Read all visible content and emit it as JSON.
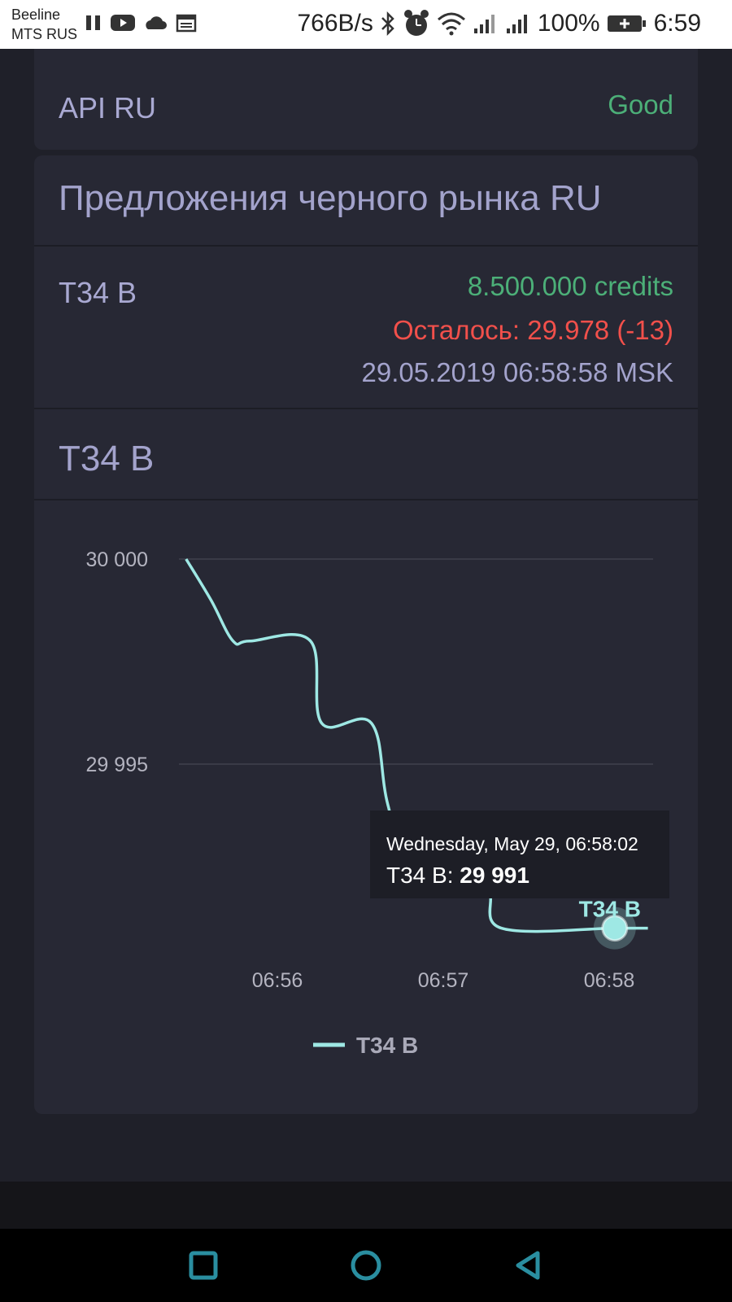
{
  "status_bar": {
    "carrier_1": "Beeline",
    "carrier_2": "MTS RUS",
    "net_speed": "766B/s",
    "battery": "100%",
    "time": "6:59",
    "left_icons": [
      "pause-icon",
      "youtube-icon",
      "cloud-icon",
      "calendar-icon"
    ],
    "right_icons": [
      "bluetooth-icon",
      "alarm-icon",
      "wifi-icon",
      "signal-icon",
      "signal-icon",
      "battery-icon"
    ]
  },
  "api": {
    "label": "API RU",
    "status": "Good",
    "status_color": "#4caf78"
  },
  "market": {
    "title": "Предложения черного рынка RU",
    "item": {
      "name": "T34 B",
      "price": "8.500.000 credits",
      "remaining": "Осталось: 29.978 (-13)",
      "timestamp": "29.05.2019 06:58:58 MSK"
    }
  },
  "chart_section": {
    "title": "T34 B"
  },
  "chart_data": {
    "type": "line",
    "title": "",
    "xlabel": "",
    "ylabel": "",
    "x_ticks": [
      "06:56",
      "06:57",
      "06:58"
    ],
    "y_ticks": [
      "30 000",
      "29 995"
    ],
    "ylim": [
      29990,
      30000
    ],
    "grid": true,
    "legend": "bottom-center",
    "series": [
      {
        "name": "T34 B",
        "color": "#9ee8e4",
        "points": [
          {
            "t": "06:55:27",
            "y": 30000
          },
          {
            "t": "06:55:36",
            "y": 29999
          },
          {
            "t": "06:55:44",
            "y": 29998
          },
          {
            "t": "06:55:50",
            "y": 29998
          },
          {
            "t": "06:56:12",
            "y": 29998
          },
          {
            "t": "06:56:16",
            "y": 29996
          },
          {
            "t": "06:56:34",
            "y": 29996
          },
          {
            "t": "06:56:40",
            "y": 29994
          },
          {
            "t": "06:56:50",
            "y": 29992
          },
          {
            "t": "06:57:15",
            "y": 29992
          },
          {
            "t": "06:57:21",
            "y": 29991
          },
          {
            "t": "06:58:02",
            "y": 29991
          },
          {
            "t": "06:58:14",
            "y": 29991
          }
        ]
      }
    ],
    "end_label": "T34 B",
    "tooltip": {
      "date": "Wednesday, May 29, 06:58:02",
      "series_label": "T34 B: ",
      "value": "29 991"
    }
  },
  "navbar": {
    "icons": [
      "recent-apps-icon",
      "home-icon",
      "back-icon"
    ],
    "icon_color": "#2a8ea0"
  }
}
